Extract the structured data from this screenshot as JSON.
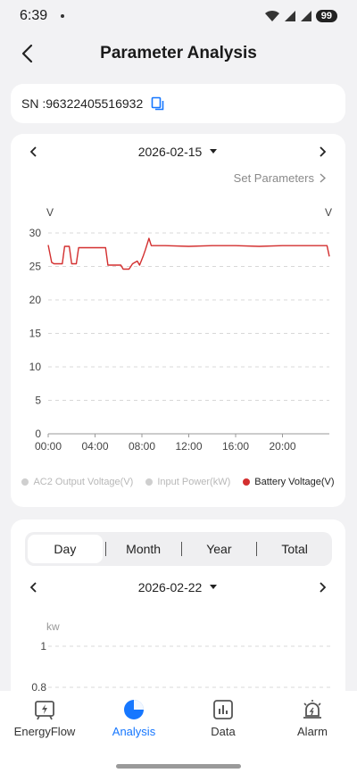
{
  "status": {
    "time": "6:39",
    "battery": "99"
  },
  "nav": {
    "title": "Parameter Analysis"
  },
  "sn": {
    "label": "SN :96322405516932"
  },
  "chart_card": {
    "date": "2026-02-15",
    "set_parameters": "Set Parameters",
    "left_unit": "V",
    "right_unit": "V",
    "legend": [
      {
        "label": "AC2 Output Voltage(V)",
        "color": "#cfcfcf"
      },
      {
        "label": "Input Power(kW)",
        "color": "#cfcfcf"
      },
      {
        "label": "Battery Voltage(V)",
        "color": "#d32f2f"
      }
    ]
  },
  "chart_data": {
    "type": "line",
    "x_ticks": [
      "00:00",
      "04:00",
      "08:00",
      "12:00",
      "16:00",
      "20:00"
    ],
    "y_ticks": [
      "0",
      "5",
      "10",
      "15",
      "20",
      "25",
      "30"
    ],
    "xlim_hours": [
      0,
      24
    ],
    "ylim": [
      0,
      30
    ],
    "ylabel": "V",
    "series": [
      {
        "name": "Battery Voltage(V)",
        "color": "#d32f2f",
        "points": [
          [
            0.0,
            28.2
          ],
          [
            0.3,
            25.6
          ],
          [
            0.5,
            25.4
          ],
          [
            1.2,
            25.4
          ],
          [
            1.4,
            28.0
          ],
          [
            1.8,
            28.0
          ],
          [
            2.0,
            25.4
          ],
          [
            2.4,
            25.4
          ],
          [
            2.6,
            27.8
          ],
          [
            4.9,
            27.8
          ],
          [
            5.1,
            25.2
          ],
          [
            6.2,
            25.2
          ],
          [
            6.4,
            24.6
          ],
          [
            6.9,
            24.6
          ],
          [
            7.2,
            25.4
          ],
          [
            7.6,
            25.8
          ],
          [
            7.8,
            25.2
          ],
          [
            8.1,
            26.5
          ],
          [
            8.3,
            27.5
          ],
          [
            8.6,
            29.2
          ],
          [
            8.8,
            28.1
          ],
          [
            10.0,
            28.1
          ],
          [
            12.0,
            28.0
          ],
          [
            14.0,
            28.1
          ],
          [
            16.0,
            28.1
          ],
          [
            18.0,
            28.0
          ],
          [
            20.0,
            28.1
          ],
          [
            22.0,
            28.1
          ],
          [
            23.8,
            28.1
          ],
          [
            24.0,
            26.5
          ]
        ]
      }
    ]
  },
  "second_card": {
    "segments": [
      "Day",
      "Month",
      "Year",
      "Total"
    ],
    "active_segment": "Day",
    "date": "2026-02-22",
    "unit": "kw",
    "y_ticks": [
      "1",
      "0.8"
    ]
  },
  "bottom_nav": {
    "tabs": [
      {
        "label": "EnergyFlow",
        "icon": "energy-flow-icon"
      },
      {
        "label": "Analysis",
        "icon": "analysis-icon"
      },
      {
        "label": "Data",
        "icon": "data-icon"
      },
      {
        "label": "Alarm",
        "icon": "alarm-icon"
      }
    ],
    "active": "Analysis"
  }
}
